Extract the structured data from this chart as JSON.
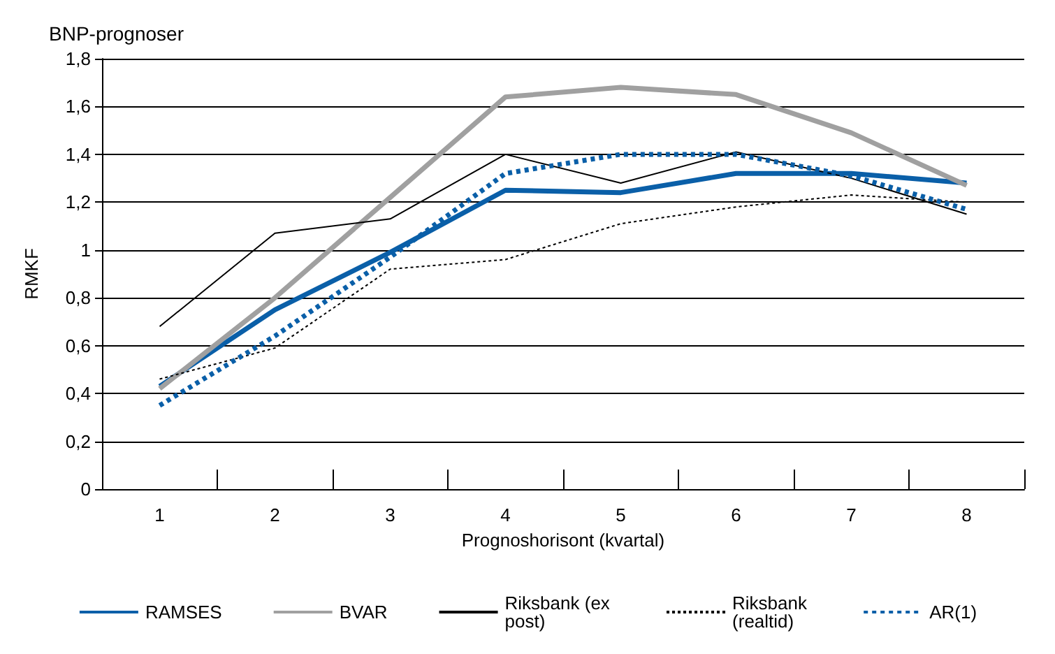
{
  "chart_data": {
    "type": "line",
    "title": "BNP-prognoser",
    "xlabel": "Prognoshorisont (kvartal)",
    "ylabel": "RMKF",
    "categories": [
      "1",
      "2",
      "3",
      "4",
      "5",
      "6",
      "7",
      "8"
    ],
    "series": [
      {
        "name": "RAMSES",
        "color": "#0a5fa8",
        "line_style": "solid",
        "values": [
          0.43,
          0.75,
          0.99,
          1.25,
          1.24,
          1.32,
          1.32,
          1.28
        ]
      },
      {
        "name": "BVAR",
        "color": "#a0a0a0",
        "line_style": "solid",
        "values": [
          0.42,
          0.8,
          1.22,
          1.64,
          1.68,
          1.65,
          1.49,
          1.27
        ]
      },
      {
        "name": "Riksbank (ex post)",
        "color": "#000000",
        "line_style": "solid",
        "values": [
          0.68,
          1.07,
          1.13,
          1.4,
          1.28,
          1.41,
          1.3,
          1.15
        ]
      },
      {
        "name": "Riksbank (realtid)",
        "color": "#000000",
        "line_style": "dotted",
        "values": [
          0.46,
          0.59,
          0.92,
          0.96,
          1.11,
          1.18,
          1.23,
          1.2
        ]
      },
      {
        "name": "AR(1)",
        "color": "#0a5fa8",
        "line_style": "dotted",
        "values": [
          0.35,
          0.64,
          0.97,
          1.32,
          1.4,
          1.4,
          1.31,
          1.17
        ]
      }
    ],
    "ylim": [
      0,
      1.8
    ],
    "yticks": [
      0,
      {
        "value": 0.2,
        "label": "0,2"
      },
      {
        "value": 0.4,
        "label": "0,4"
      },
      {
        "value": 0.6,
        "label": "0,6"
      },
      {
        "value": 0.8,
        "label": "0,8"
      },
      1,
      {
        "value": 1.2,
        "label": "1,2"
      },
      {
        "value": 1.4,
        "label": "1,4"
      },
      {
        "value": 1.6,
        "label": "1,6"
      },
      {
        "value": 1.8,
        "label": "1,8"
      }
    ],
    "grid": "y",
    "legend": "bottom",
    "marker": "none"
  }
}
